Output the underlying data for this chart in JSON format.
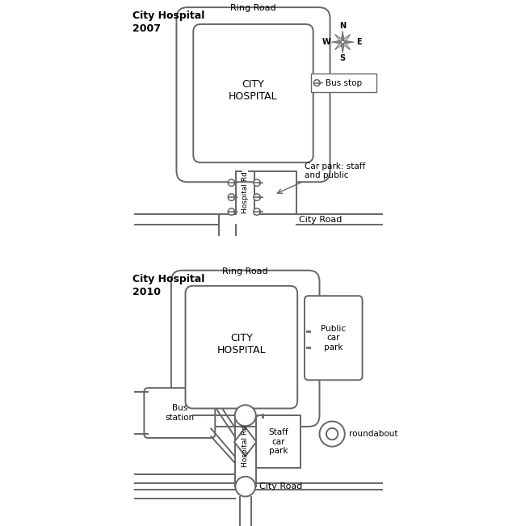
{
  "bg_color": "#ffffff",
  "line_color": "#666666",
  "lw": 1.4,
  "title1": "City Hospital\n2007",
  "title2": "City Hospital\n2010",
  "hospital_text": "CITY\nHOSPITAL",
  "ring_road_label": "Ring Road",
  "city_road_label": "City Road",
  "hospital_rd_label": "Hospital Rd",
  "car_park_label": "Car park: staff\nand public",
  "public_car_park_label": "Public\ncar\npark",
  "staff_car_park_label": "Staff\ncar\npark",
  "bus_station_label": "Bus\nstation",
  "bus_stop_label": "Bus stop",
  "roundabout_label": "roundabout",
  "compass_labels": [
    "N",
    "S",
    "W",
    "E"
  ]
}
